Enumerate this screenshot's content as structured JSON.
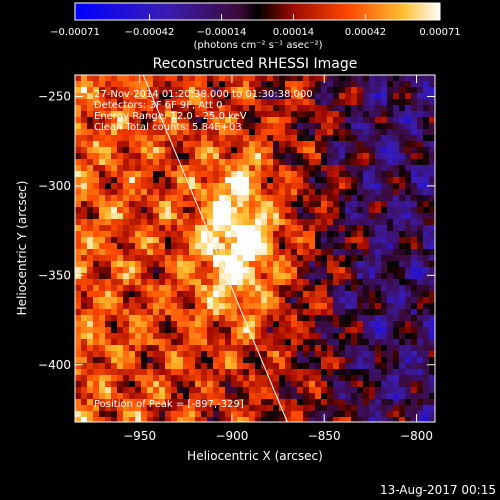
{
  "chart_data": {
    "type": "heatmap",
    "title": "Reconstructed RHESSI Image",
    "xlabel": "Heliocentric X (arcsec)",
    "ylabel": "Heliocentric Y (arcsec)",
    "xlim": [
      -985,
      -790
    ],
    "ylim": [
      -432,
      -238
    ],
    "x_ticks": [
      -950,
      -900,
      -850,
      -800
    ],
    "x_tick_labels": [
      "−950",
      "−900",
      "−850",
      "−800"
    ],
    "y_ticks": [
      -250,
      -300,
      -350,
      -400
    ],
    "y_tick_labels": [
      "−250",
      "−300",
      "−350",
      "−400"
    ],
    "colorbar": {
      "min": -0.00071,
      "max": 0.00071,
      "ticks": [
        -0.00071,
        -0.00042,
        -0.00014,
        0.00014,
        0.00042,
        0.00071
      ],
      "tick_labels": [
        "−0.00071",
        "−0.00042",
        "−0.00014",
        "0.00014",
        "0.00042",
        "0.00071"
      ],
      "unit_label": "(photons cm⁻² s⁻¹ asec⁻²)"
    },
    "peak_position": [
      -897,
      -329
    ],
    "limb_line": [
      [
        -948,
        -238
      ],
      [
        -870,
        -432
      ]
    ],
    "annotations": [
      "27-Nov-2014 01:20:38.000 to 01:30:38.000",
      "Detectors: 3F 6F 9F, Att 0",
      "Energy Range: 12.0 - 25.0 keV",
      "Clean    Total counts: 5.84E+03"
    ],
    "peak_label": "Position of Peak = [-897,-329]",
    "footer_timestamp": "13-Aug-2017 00:15"
  }
}
